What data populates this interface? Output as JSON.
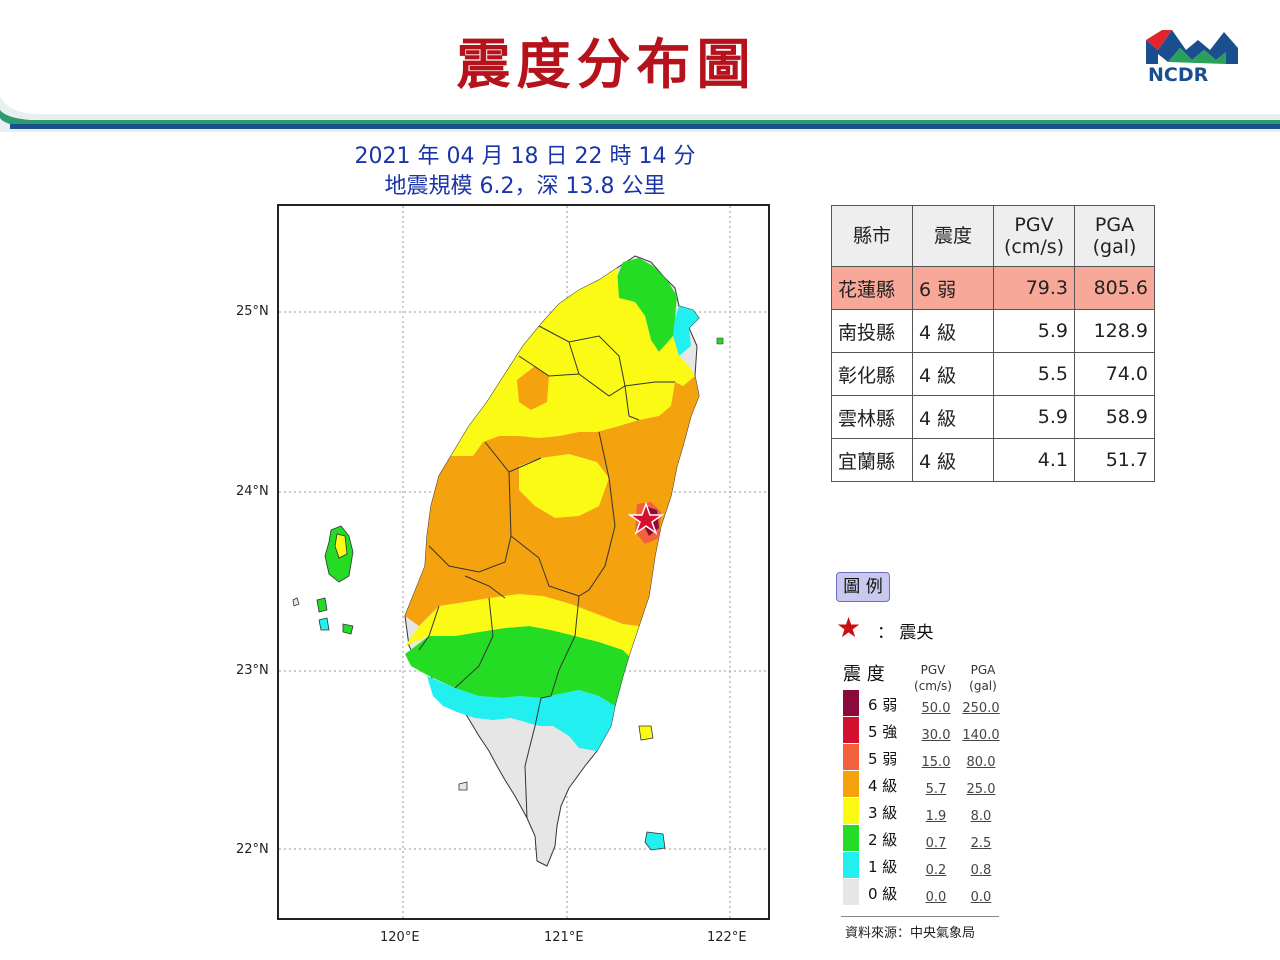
{
  "title": "震度分布圖",
  "logo": {
    "text": "NCDR"
  },
  "quake": {
    "line1": "2021 年 04 月 18 日 22 時 14 分",
    "line2": "地震規模 6.2，深 13.8 公里"
  },
  "map": {
    "lat_labels": [
      "25°N",
      "24°N",
      "23°N",
      "22°N"
    ],
    "lon_labels": [
      "120°E",
      "121°E",
      "122°E"
    ],
    "epicenter_marker": "star-icon"
  },
  "table": {
    "headers": [
      "縣市",
      "震度",
      "PGV\n(cm/s)",
      "PGA\n(gal)"
    ],
    "rows": [
      [
        "花蓮縣",
        "6 弱",
        "79.3",
        "805.6"
      ],
      [
        "南投縣",
        "4 級",
        "5.9",
        "128.9"
      ],
      [
        "彰化縣",
        "4 級",
        "5.5",
        "74.0"
      ],
      [
        "雲林縣",
        "4 級",
        "5.9",
        "58.9"
      ],
      [
        "宜蘭縣",
        "4 級",
        "4.1",
        "51.7"
      ]
    ],
    "highlight_color": "#f8a898"
  },
  "legend": {
    "title": "圖 例",
    "epicenter_label": "： 震央",
    "intensity_head": "震 度",
    "pgv_head": "PGV\n(cm/s)",
    "pga_head": "PGA\n(gal)",
    "levels": [
      {
        "label": "6 弱",
        "pgv": "50.0",
        "pga": "250.0",
        "color": "#8b0a3a"
      },
      {
        "label": "5 強",
        "pgv": "30.0",
        "pga": "140.0",
        "color": "#d5102e"
      },
      {
        "label": "5 弱",
        "pgv": "15.0",
        "pga": "80.0",
        "color": "#f2603c"
      },
      {
        "label": "4 級",
        "pgv": "5.7",
        "pga": "25.0",
        "color": "#f5a20f"
      },
      {
        "label": "3 級",
        "pgv": "1.9",
        "pga": "8.0",
        "color": "#fafa14"
      },
      {
        "label": "2 級",
        "pgv": "0.7",
        "pga": "2.5",
        "color": "#24dc24"
      },
      {
        "label": "1 級",
        "pgv": "0.2",
        "pga": "0.8",
        "color": "#22f0f0"
      },
      {
        "label": "0 級",
        "pgv": "0.0",
        "pga": "0.0",
        "color": "#e6e6e6"
      }
    ],
    "source": "資料來源：中央氣象局"
  }
}
